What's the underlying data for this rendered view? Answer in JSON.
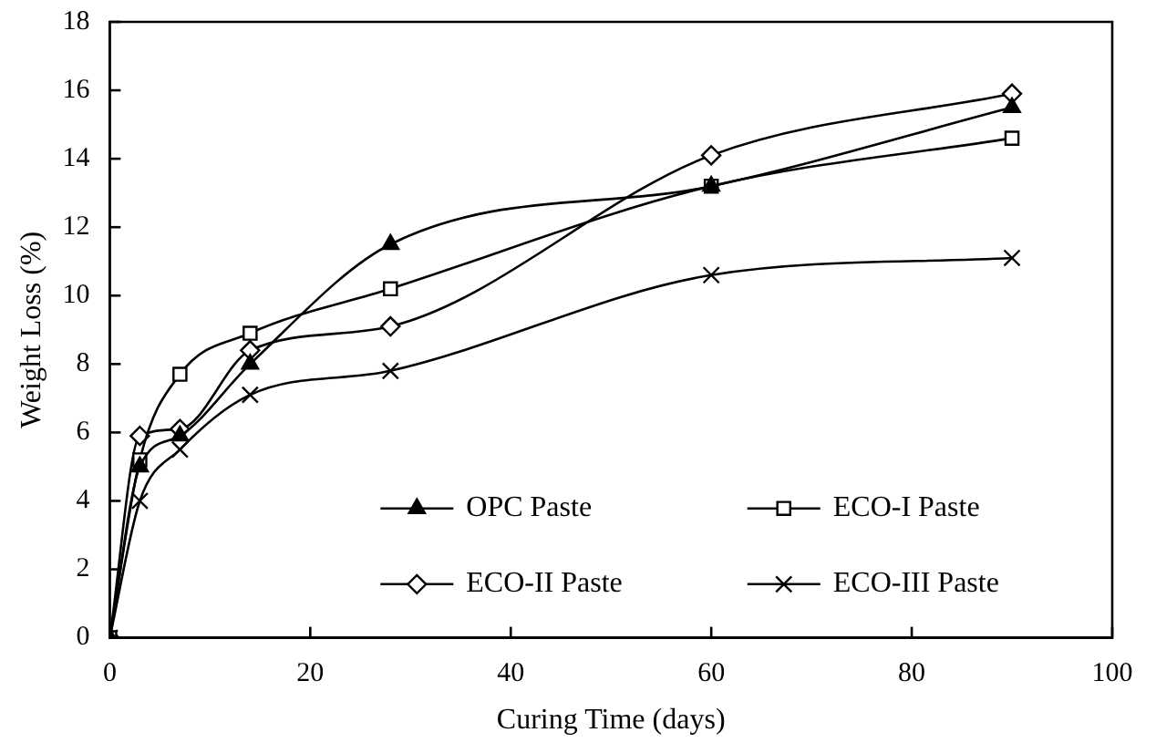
{
  "chart_data": {
    "type": "line",
    "xlabel": "Curing Time (days)",
    "ylabel": "Weight Loss (%)",
    "x": [
      0,
      3,
      7,
      14,
      28,
      60,
      90
    ],
    "xlim": [
      0,
      100
    ],
    "xticks": [
      0,
      20,
      40,
      60,
      80,
      100
    ],
    "ylim": [
      0,
      18
    ],
    "yticks": [
      0,
      2,
      4,
      6,
      8,
      10,
      12,
      14,
      16,
      18
    ],
    "grid": false,
    "legend": "bottom right",
    "series": [
      {
        "name": "OPC Paste",
        "color": "#000000",
        "marker": "triangle",
        "values": [
          0,
          5.0,
          5.9,
          8.0,
          11.5,
          13.2,
          15.5
        ]
      },
      {
        "name": "ECO-I Paste",
        "color": "#000000",
        "marker": "square",
        "values": [
          0,
          5.2,
          7.7,
          8.9,
          10.2,
          13.2,
          14.6
        ]
      },
      {
        "name": "ECO-II Paste",
        "color": "#000000",
        "marker": "diamond",
        "values": [
          0,
          5.9,
          6.1,
          8.4,
          9.1,
          14.1,
          15.9
        ]
      },
      {
        "name": "ECO-III Paste",
        "color": "#000000",
        "marker": "cross",
        "values": [
          0,
          4.0,
          5.5,
          7.1,
          7.8,
          10.6,
          11.1
        ]
      }
    ]
  }
}
